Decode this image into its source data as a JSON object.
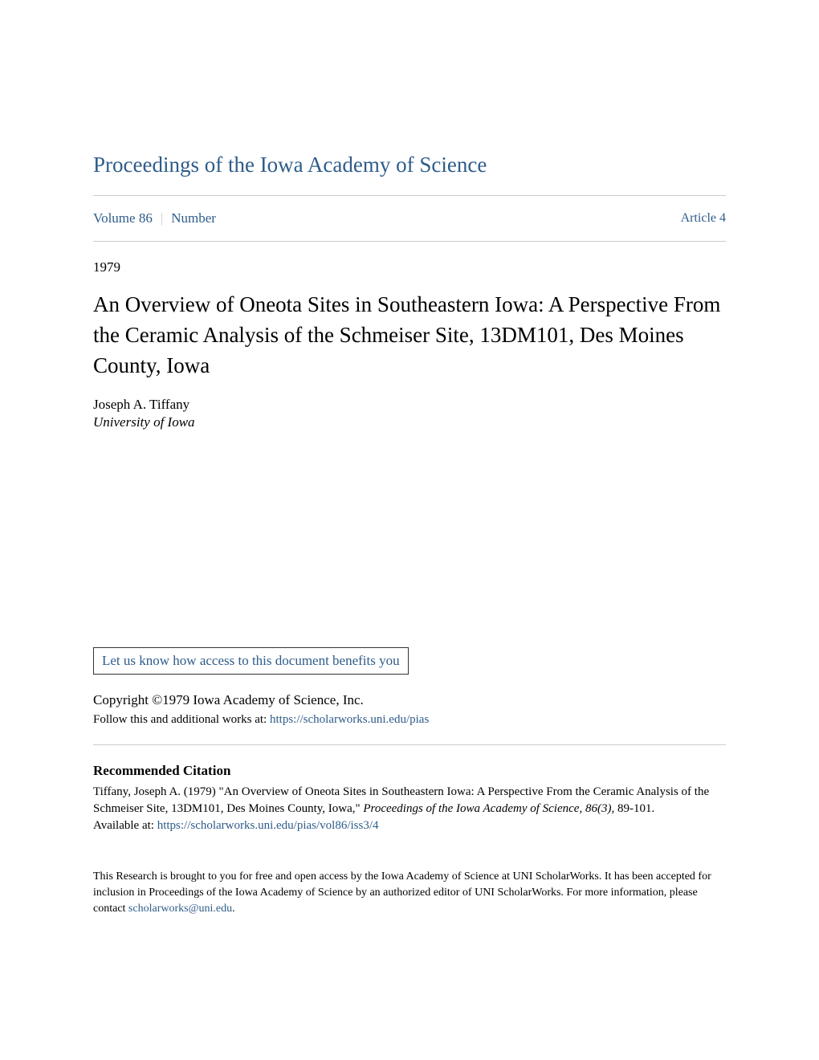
{
  "journal": {
    "title": "Proceedings of the Iowa Academy of Science"
  },
  "issue": {
    "volume_label": "Volume 86",
    "number_label": "Number",
    "article_label": "Article 4",
    "year": "1979"
  },
  "article": {
    "title": "An Overview of Oneota Sites in Southeastern Iowa: A Perspective From the Ceramic Analysis of the Schmeiser Site, 13DM101, Des Moines County, Iowa",
    "author_name": "Joseph A. Tiffany",
    "author_affiliation": "University of Iowa"
  },
  "benefits": {
    "link_text": "Let us know how access to this document benefits you"
  },
  "copyright": {
    "text": "Copyright ©1979 Iowa Academy of Science, Inc."
  },
  "follow": {
    "prefix": "Follow this and additional works at: ",
    "url": "https://scholarworks.uni.edu/pias"
  },
  "citation": {
    "heading": "Recommended Citation",
    "text_before_italic": "Tiffany, Joseph A. (1979) \"An Overview of Oneota Sites in Southeastern Iowa: A Perspective From the Ceramic Analysis of the Schmeiser Site, 13DM101, Des Moines County, Iowa,\" ",
    "italic_text": "Proceedings of the Iowa Academy of Science, 86(3),",
    "text_after_italic": " 89-101.",
    "available_prefix": "Available at: ",
    "available_url": "https://scholarworks.uni.edu/pias/vol86/iss3/4"
  },
  "footer": {
    "text_before_link": "This Research is brought to you for free and open access by the Iowa Academy of Science at UNI ScholarWorks. It has been accepted for inclusion in Proceedings of the Iowa Academy of Science by an authorized editor of UNI ScholarWorks. For more information, please contact ",
    "link_text": "scholarworks@uni.edu",
    "text_after_link": "."
  },
  "colors": {
    "link_color": "#2e5c8a",
    "text_color": "#000000",
    "divider_color": "#cccccc",
    "background": "#ffffff"
  }
}
